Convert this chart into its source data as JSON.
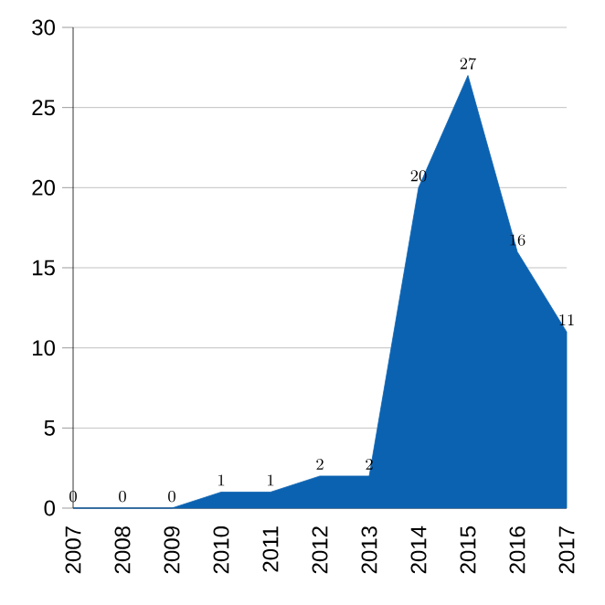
{
  "chart_data": {
    "type": "area",
    "categories": [
      "2007",
      "2008",
      "2009",
      "2010",
      "2011",
      "2012",
      "2013",
      "2014",
      "2015",
      "2016",
      "2017"
    ],
    "values": [
      0,
      0,
      0,
      1,
      1,
      2,
      2,
      20,
      27,
      16,
      11
    ],
    "color": "#0b62b1",
    "ylim": [
      0,
      30
    ],
    "yticks": [
      0,
      5,
      10,
      15,
      20,
      25,
      30
    ],
    "grid": "y",
    "data_labels": true
  }
}
